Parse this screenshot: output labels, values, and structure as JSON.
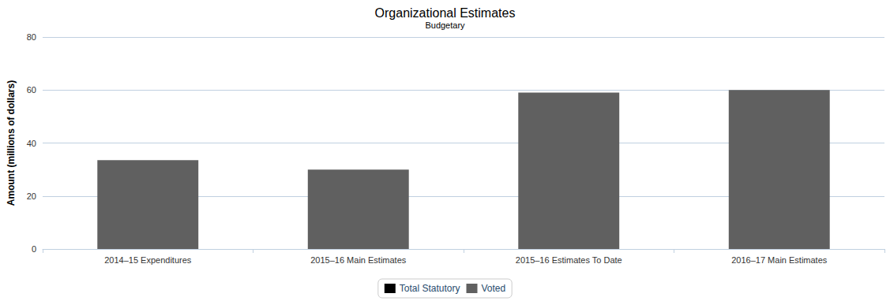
{
  "chart_data": {
    "type": "bar",
    "title": "Organizational Estimates",
    "subtitle": "Budgetary",
    "y_label": "Amount (millions of dollars)",
    "categories": [
      "2014–15 Expenditures",
      "2015–16 Main Estimates",
      "2015–16 Estimates To Date",
      "2016–17 Main Estimates"
    ],
    "series": [
      {
        "name": "Total Statutory",
        "color": "#000000",
        "values": [
          0,
          0,
          0,
          0
        ]
      },
      {
        "name": "Voted",
        "color": "#606060",
        "values": [
          33.5,
          30,
          59,
          60
        ]
      }
    ],
    "stacked": true,
    "ylim": [
      0,
      80
    ],
    "yticks": [
      0,
      20,
      40,
      60,
      80
    ],
    "grid": true,
    "legend": "bottom"
  }
}
